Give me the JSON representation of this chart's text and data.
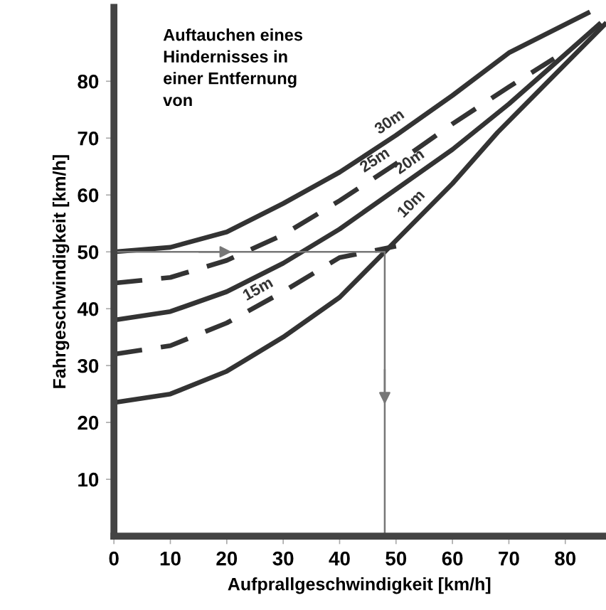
{
  "chart_data": {
    "type": "line",
    "xlabel": "Aufprallgeschwindigkeit [km/h]",
    "ylabel": "Fahrgeschwindigkeit [km/h]",
    "annotations": [
      "Auftauchen eines\nHindernisses in\neiner Entfernung\nvon"
    ],
    "xlim": [
      0,
      87
    ],
    "ylim": [
      0,
      93
    ],
    "xticks": [
      0,
      10,
      20,
      30,
      40,
      50,
      60,
      70,
      80
    ],
    "yticks": [
      10,
      20,
      30,
      40,
      50,
      60,
      70,
      80
    ],
    "grid": false,
    "marker": "none",
    "series": [
      {
        "name": "30m",
        "color": "#333333",
        "line_style": "solid",
        "x": [
          0,
          10,
          20,
          30,
          40,
          50,
          60,
          70,
          84
        ],
        "values": [
          50,
          50.8,
          53.5,
          58.5,
          64,
          70.5,
          77.5,
          85,
          92
        ]
      },
      {
        "name": "25m",
        "color": "#333333",
        "line_style": "dashed",
        "x": [
          0,
          10,
          20,
          30,
          40,
          50,
          60,
          70,
          78
        ],
        "values": [
          44.5,
          45.5,
          48.5,
          53,
          59,
          65.5,
          72.5,
          79,
          84
        ]
      },
      {
        "name": "20m",
        "color": "#333333",
        "line_style": "solid",
        "x": [
          0,
          10,
          20,
          30,
          40,
          50,
          60,
          70,
          86
        ],
        "values": [
          38,
          39.5,
          43,
          48,
          54,
          61,
          68,
          76,
          90
        ]
      },
      {
        "name": "15m",
        "color": "#333333",
        "line_style": "dashed",
        "x": [
          0,
          10,
          20,
          30,
          40,
          50
        ],
        "values": [
          32,
          33.5,
          37.5,
          43,
          49,
          51
        ]
      },
      {
        "name": "10m",
        "color": "#333333",
        "line_style": "solid",
        "x": [
          0,
          10,
          20,
          30,
          40,
          48,
          60,
          68,
          87
        ],
        "values": [
          23.5,
          25,
          29,
          35,
          42,
          50,
          62,
          71,
          90
        ]
      },
      {
        "color": "#777777",
        "line_style": "solid",
        "x": [
          0,
          48,
          48
        ],
        "values": [
          50,
          50,
          0
        ]
      }
    ]
  }
}
